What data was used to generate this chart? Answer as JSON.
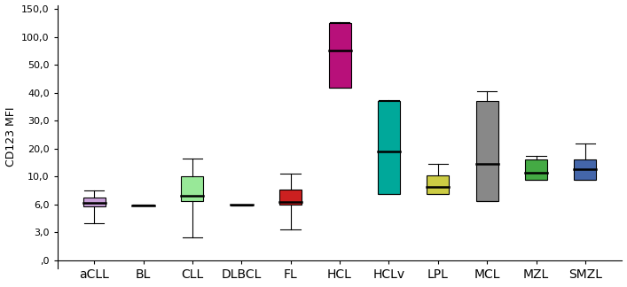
{
  "categories": [
    "aCLL",
    "BL",
    "CLL",
    "DLBCL",
    "FL",
    "HCL",
    "HCLv",
    "LPL",
    "MCL",
    "MZL",
    "SMZL"
  ],
  "colors": [
    "#C8A0D8",
    "#808080",
    "#98E898",
    "#808080",
    "#CC2020",
    "#B8107A",
    "#00A89A",
    "#CCCC44",
    "#888888",
    "#44AA44",
    "#4466AA"
  ],
  "ylabel": "CD123 MFI",
  "ytick_vals": [
    0,
    3.0,
    6.0,
    10.0,
    20.0,
    30.0,
    40.0,
    50.0,
    100.0,
    150.0
  ],
  "ytick_labels": [
    ",0",
    "3,0",
    "6,0",
    "10,0",
    "20,0",
    "30,0",
    "40,0",
    "50,0",
    "100,0",
    "150,0"
  ],
  "boxes": {
    "aCLL": {
      "q1": 5.8,
      "median": 6.3,
      "q3": 7.0,
      "whislo": 4.0,
      "whishi": 8.0
    },
    "BL": {
      "q1": 5.85,
      "median": 5.9,
      "q3": 5.95,
      "whislo": 5.85,
      "whishi": 5.95
    },
    "CLL": {
      "q1": 6.5,
      "median": 7.2,
      "q3": 10.0,
      "whislo": 2.5,
      "whishi": 16.5
    },
    "DLBCL": {
      "q1": 5.88,
      "median": 5.95,
      "q3": 6.02,
      "whislo": 5.88,
      "whishi": 6.02
    },
    "FL": {
      "q1": 6.0,
      "median": 6.4,
      "q3": 8.2,
      "whislo": 3.3,
      "whishi": 11.0
    },
    "HCL": {
      "q1": 42.0,
      "median": 76.0,
      "q3": 125.0,
      "whislo": 42.0,
      "whishi": 127.0
    },
    "HCLv": {
      "q1": 7.5,
      "median": 19.0,
      "q3": 37.0,
      "whislo": 7.5,
      "whishi": 37.5
    },
    "LPL": {
      "q1": 7.5,
      "median": 8.5,
      "q3": 10.5,
      "whislo": 7.5,
      "whishi": 14.5
    },
    "MCL": {
      "q1": 6.5,
      "median": 14.5,
      "q3": 37.0,
      "whislo": 6.5,
      "whishi": 40.5
    },
    "MZL": {
      "q1": 9.5,
      "median": 11.5,
      "q3": 16.0,
      "whislo": 9.5,
      "whishi": 17.5
    },
    "SMZL": {
      "q1": 9.5,
      "median": 12.5,
      "q3": 16.0,
      "whislo": 9.5,
      "whishi": 22.0
    }
  },
  "figsize": [
    7.07,
    3.24
  ],
  "dpi": 100
}
